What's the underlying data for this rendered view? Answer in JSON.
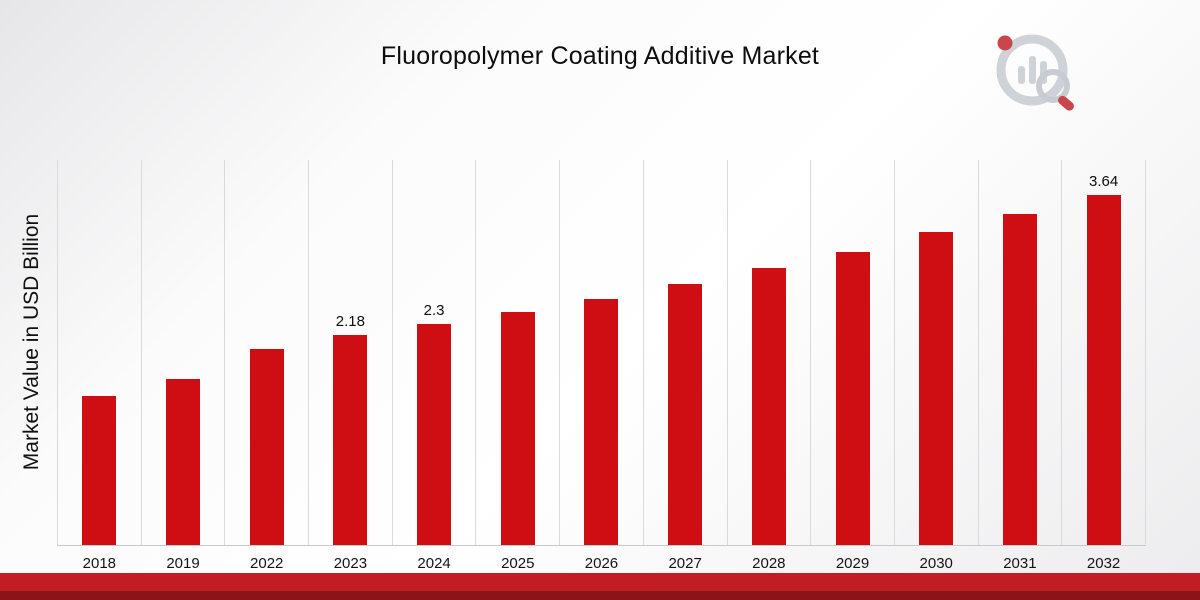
{
  "page": {
    "title": "Fluoropolymer Coating Additive Market"
  },
  "chart_data": {
    "type": "bar",
    "title": "Fluoropolymer Coating Additive Market",
    "xlabel": "",
    "ylabel": "Market Value in USD Billion",
    "categories": [
      "2018",
      "2019",
      "2022",
      "2023",
      "2024",
      "2025",
      "2026",
      "2027",
      "2028",
      "2029",
      "2030",
      "2031",
      "2032"
    ],
    "values": [
      1.55,
      1.72,
      2.04,
      2.18,
      2.3,
      2.42,
      2.56,
      2.71,
      2.88,
      3.04,
      3.25,
      3.44,
      3.64
    ],
    "bar_labels": [
      "",
      "",
      "",
      "2.18",
      "2.3",
      "",
      "",
      "",
      "",
      "",
      "",
      "",
      "3.64"
    ],
    "ylim": [
      0,
      4
    ],
    "grid": "vertical",
    "legend": "none",
    "bar_color": "#ce0e12"
  },
  "branding": {
    "logo_name": "market-research-logo"
  },
  "colors": {
    "accent": "#ce0e12",
    "footer_strip_light": "#c01e24",
    "footer_strip_dark": "#8c1418",
    "gridline": "#dadada"
  }
}
